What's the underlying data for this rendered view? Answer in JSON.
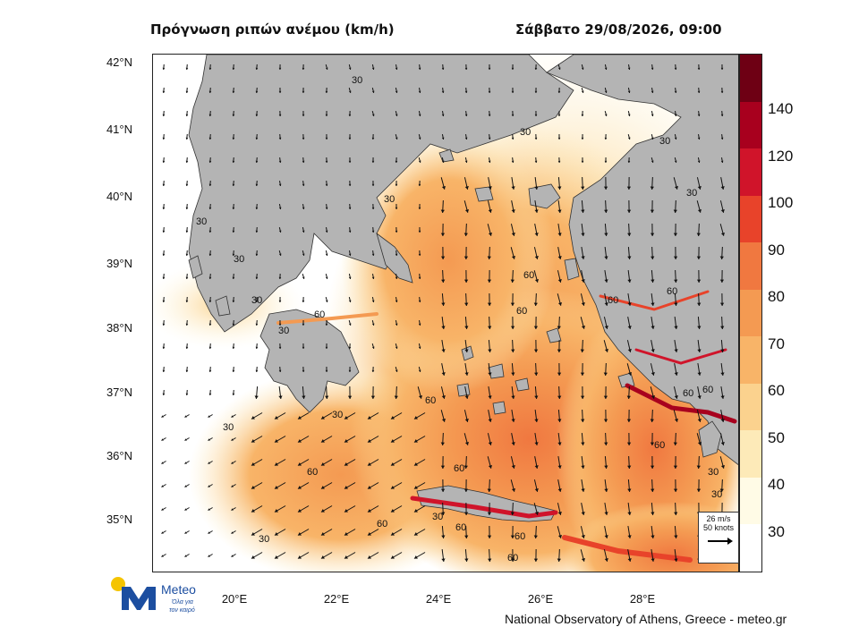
{
  "header": {
    "title": "Πρόγνωση ριπών ανέμου (km/h)",
    "datetime": "Σάββατο 29/08/2026, 09:00"
  },
  "map": {
    "lat_labels": [
      "42°N",
      "41°N",
      "40°N",
      "39°N",
      "38°N",
      "37°N",
      "36°N",
      "35°N"
    ],
    "lon_labels": [
      "20°E",
      "22°E",
      "24°E",
      "26°E",
      "28°E"
    ],
    "contour_labels": [
      "30",
      "60"
    ],
    "land_color": "#b4b4b4",
    "sea_low_color": "#ffffff"
  },
  "legend": {
    "levels": [
      "140",
      "120",
      "100",
      "90",
      "80",
      "70",
      "60",
      "50",
      "40",
      "30"
    ],
    "colors": [
      "#6e0014",
      "#a8001e",
      "#d0142a",
      "#e8432a",
      "#f07840",
      "#f49a52",
      "#f8b468",
      "#fbd28e",
      "#fdeab8",
      "#fffbe6",
      "#ffffff"
    ]
  },
  "reference_vector": {
    "speed_ms": "26 m/s",
    "speed_knots": "50 knots"
  },
  "footer": {
    "credit": "National Observatory of Athens, Greece - meteo.gr"
  },
  "logo": {
    "name": "Meteo",
    "tagline_line1": "Όλα για",
    "tagline_line2": "τον καιρό",
    "sun_color": "#f5c400",
    "brand_color": "#1c4ea0"
  }
}
